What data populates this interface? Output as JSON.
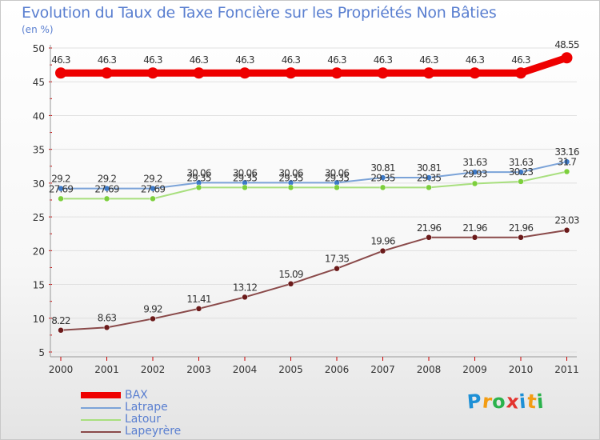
{
  "chart_data": {
    "type": "line",
    "title": "Evolution du Taux de Taxe Foncière sur les Propriétés Non Bâties",
    "ylabel": "(en %)",
    "xlabel": "",
    "ylim": [
      5,
      50
    ],
    "yticks": [
      5,
      10,
      15,
      20,
      25,
      30,
      35,
      40,
      45,
      50
    ],
    "categories": [
      "2000",
      "2001",
      "2002",
      "2003",
      "2004",
      "2005",
      "2006",
      "2007",
      "2008",
      "2009",
      "2010",
      "2011"
    ],
    "grid": "horizontal",
    "series": [
      {
        "name": "BAX",
        "color": "#ee0000",
        "emphasis": true,
        "values": [
          46.3,
          46.3,
          46.3,
          46.3,
          46.3,
          46.3,
          46.3,
          46.3,
          46.3,
          46.3,
          46.3,
          48.55
        ],
        "labels": [
          "46.3",
          "46.3",
          "46.3",
          "46.3",
          "46.3",
          "46.3",
          "46.3",
          "46.3",
          "46.3",
          "46.3",
          "46.3",
          "48.55"
        ]
      },
      {
        "name": "Latrape",
        "color": "#7ba3d8",
        "marker": "#3d7ac8",
        "values": [
          29.2,
          29.2,
          29.2,
          30.06,
          30.06,
          30.06,
          30.06,
          30.81,
          30.81,
          31.63,
          31.63,
          33.16
        ],
        "labels": [
          "29.2",
          "29.2",
          "29.2",
          "30.06",
          "30.06",
          "30.06",
          "30.06",
          "30.81",
          "30.81",
          "31.63",
          "31.63",
          "33.16"
        ]
      },
      {
        "name": "Latour",
        "color": "#a8df7e",
        "marker": "#7ccf3c",
        "values": [
          27.69,
          27.69,
          27.69,
          29.35,
          29.35,
          29.35,
          29.35,
          29.35,
          29.35,
          29.93,
          30.23,
          31.7
        ],
        "labels": [
          "27.69",
          "27.69",
          "27.69",
          "29.35",
          "29.35",
          "29.35",
          "29.35",
          "29.35",
          "29.35",
          "29.93",
          "30.23",
          "31.7"
        ]
      },
      {
        "name": "Lapeyrère",
        "color": "#8a4a4a",
        "marker": "#6b1a1a",
        "values": [
          8.22,
          8.63,
          9.92,
          11.41,
          13.12,
          15.09,
          17.35,
          19.96,
          21.96,
          21.96,
          21.96,
          23.03
        ],
        "labels": [
          "8.22",
          "8.63",
          "9.92",
          "11.41",
          "13.12",
          "15.09",
          "17.35",
          "19.96",
          "21.96",
          "21.96",
          "21.96",
          "23.03"
        ]
      }
    ]
  },
  "logo": {
    "letters": [
      {
        "ch": "P",
        "color": "#1e90d6"
      },
      {
        "ch": "r",
        "color": "#f39c12"
      },
      {
        "ch": "o",
        "color": "#2bb24c"
      },
      {
        "ch": "x",
        "color": "#e3342f"
      },
      {
        "ch": "i",
        "color": "#1e90d6"
      },
      {
        "ch": "t",
        "color": "#f39c12"
      },
      {
        "ch": "i",
        "color": "#2bb24c"
      }
    ]
  }
}
